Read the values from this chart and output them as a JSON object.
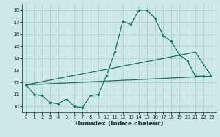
{
  "xlabel": "Humidex (Indice chaleur)",
  "background_color": "#cce8e8",
  "grid_color": "#aacccc",
  "line_color": "#1a7060",
  "xlim": [
    -0.5,
    23.5
  ],
  "ylim": [
    9.5,
    18.5
  ],
  "xticks": [
    0,
    1,
    2,
    3,
    4,
    5,
    6,
    7,
    8,
    9,
    10,
    11,
    12,
    13,
    14,
    15,
    16,
    17,
    18,
    19,
    20,
    21,
    22,
    23
  ],
  "yticks": [
    10,
    11,
    12,
    13,
    14,
    15,
    16,
    17,
    18
  ],
  "line1_x": [
    0,
    1,
    2,
    3,
    4,
    5,
    6,
    7,
    8,
    9,
    10,
    11,
    12,
    13,
    14,
    15,
    16,
    17,
    18,
    19,
    20,
    21,
    22
  ],
  "line1_y": [
    11.8,
    11.0,
    10.9,
    10.3,
    10.2,
    10.6,
    10.0,
    9.9,
    10.9,
    11.0,
    12.6,
    14.5,
    17.1,
    16.8,
    18.0,
    18.0,
    17.3,
    15.9,
    15.4,
    14.3,
    13.8,
    12.5,
    12.5
  ],
  "line2_x": [
    0,
    21,
    23
  ],
  "line2_y": [
    11.8,
    14.5,
    12.5
  ],
  "line3_x": [
    0,
    23
  ],
  "line3_y": [
    11.8,
    12.5
  ],
  "tick_fontsize": 5,
  "xlabel_fontsize": 6.5
}
